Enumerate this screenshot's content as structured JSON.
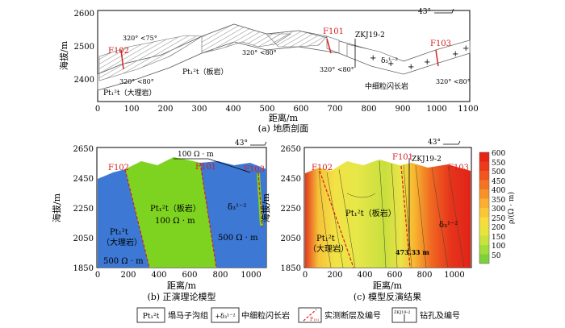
{
  "panel_a": {
    "title": "(a) 地质剖面",
    "ylabel": "海拔/m",
    "xlabel": "距离/m",
    "x_ticks": [
      "0",
      "100",
      "200",
      "300",
      "400",
      "500",
      "600",
      "700",
      "800",
      "900",
      "1000",
      "1100"
    ],
    "y_ticks": [
      "2600",
      "2500",
      "2400"
    ],
    "labels": {
      "f101": "F101",
      "f102": "F102",
      "f103": "F103",
      "zkj": "ZKJ19-2",
      "dip1": "320° <75°",
      "dip2": "320° <80°",
      "dip3": "320° <80°",
      "dip4": "320° <80°",
      "dip5": "320° <80°",
      "slate": "Pt₁²t（板岩）",
      "marble": "Pt₁²t（大理岩）",
      "granodiorite_sym": "δ₃¹⁻²",
      "granodiorite": "中细粒闪长岩",
      "north": "43°"
    }
  },
  "panel_b": {
    "title": "(b) 正演理论模型",
    "ylabel": "海拔/m",
    "xlabel": "距离/m",
    "x_ticks": [
      "0",
      "200",
      "400",
      "600",
      "800",
      "1000"
    ],
    "y_ticks": [
      "2650",
      "2450",
      "2250",
      "2050",
      "1850"
    ],
    "labels": {
      "f101": "F101",
      "f102": "F102",
      "f103": "F103",
      "top_res": "100 Ω · m",
      "slate": "Pt₁²t（板岩）",
      "slate_res": "100 Ω · m",
      "marble": "Pt₁²t",
      "marble2": "（大理岩）",
      "marble_res": "500 Ω · m",
      "grano": "δ₃¹⁻²",
      "grano_res": "500 Ω · m",
      "north": "43°"
    }
  },
  "panel_c": {
    "title": "(c) 模型反演结果",
    "ylabel": "海拔/m",
    "xlabel": "距离/m",
    "x_ticks": [
      "0",
      "200",
      "400",
      "600",
      "800",
      "1000"
    ],
    "y_ticks": [
      "2650",
      "2450",
      "2250",
      "2050",
      "1850"
    ],
    "labels": {
      "f101": "F101",
      "f102": "F102",
      "f103": "F103",
      "zkj": "ZKJ19-2",
      "slate": "Pt₁²t（板岩）",
      "marble": "Pt₁²t",
      "marble2": "（大理岩）",
      "grano": "δ₃¹⁻²",
      "depth": "473.33 m",
      "north": "43°"
    },
    "colorbar": {
      "label": "ρ/(Ω · m)",
      "ticks": [
        "600",
        "550",
        "500",
        "450",
        "400",
        "350",
        "300",
        "250",
        "200",
        "150",
        "100",
        "50"
      ],
      "colors": [
        "#e62418",
        "#ed3a1b",
        "#f2561e",
        "#f57323",
        "#f89128",
        "#fbae2f",
        "#fbc637",
        "#f8db3c",
        "#e8e43c",
        "#c9e33a",
        "#a4dc3a",
        "#7ed13c"
      ]
    }
  },
  "legend": {
    "item1_sym": "Pt₁²t",
    "item1": "塌马子沟组",
    "item2_sym": "+δ₃¹⁻²",
    "item2": "中细粒闪长岩",
    "item3_sym": "F₁₀₁",
    "item3": "实测断层及编号",
    "item4_sym": "ZKJ19-2",
    "item4": "钻孔及编号"
  }
}
